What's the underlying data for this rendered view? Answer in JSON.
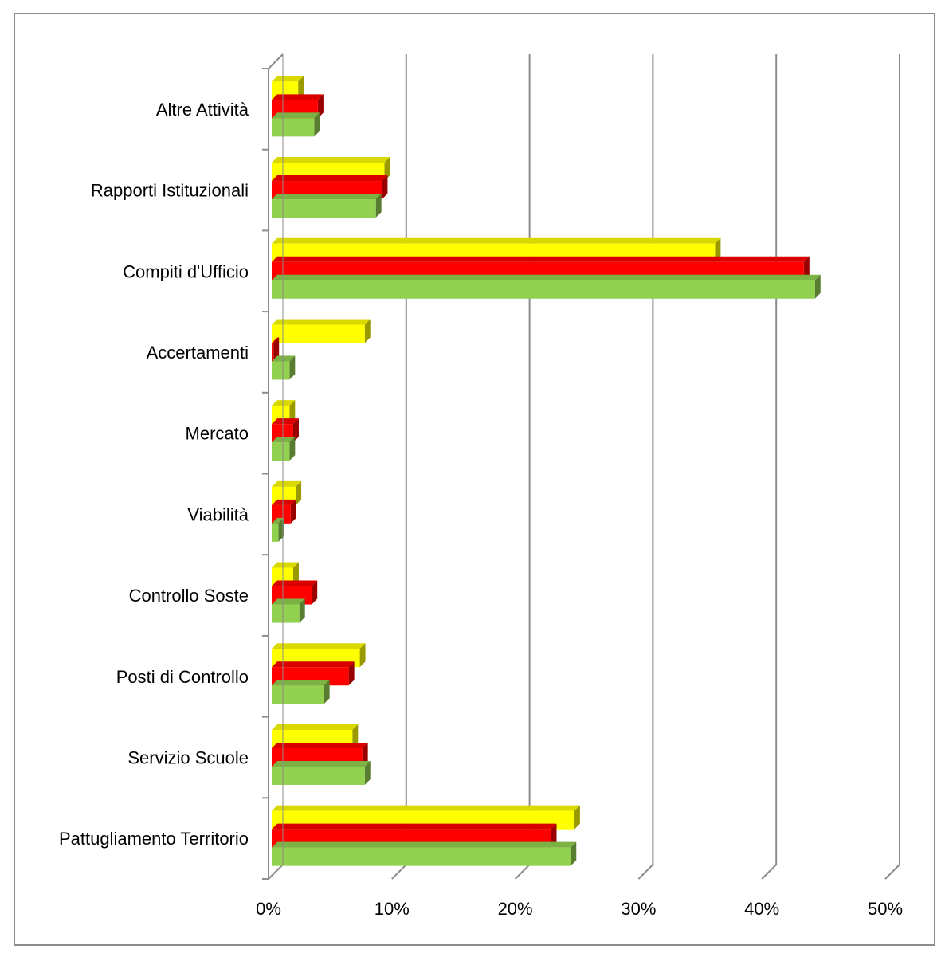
{
  "chart_data": {
    "type": "bar",
    "orientation": "horizontal",
    "style": "3d-clustered",
    "categories": [
      "Pattugliamento Territorio",
      "Servizio Scuole",
      "Posti di Controllo",
      "Controllo Soste",
      "Viabilità",
      "Mercato",
      "Accertamenti",
      "Compiti d'Ufficio",
      "Rapporti Istituzionali",
      "Altre Attività"
    ],
    "series": [
      {
        "color": "#92d050",
        "values": [
          24.5,
          7.8,
          4.5,
          2.5,
          0.8,
          1.7,
          1.7,
          44.3,
          8.7,
          3.7
        ]
      },
      {
        "color": "#ff0000",
        "values": [
          22.9,
          7.6,
          6.5,
          3.5,
          1.8,
          2.0,
          0.4,
          43.4,
          9.2,
          4.0
        ]
      },
      {
        "color": "#ffff00",
        "values": [
          24.8,
          6.8,
          7.4,
          2.0,
          2.2,
          1.7,
          7.8,
          36.2,
          9.4,
          2.4
        ]
      }
    ],
    "xlim": [
      0,
      50
    ],
    "xticks": [
      "0%",
      "10%",
      "20%",
      "30%",
      "40%",
      "50%"
    ],
    "grid": true,
    "legend": "none"
  }
}
